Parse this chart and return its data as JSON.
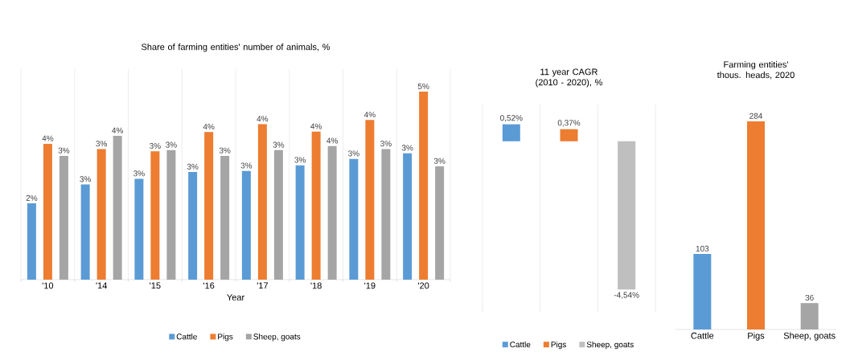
{
  "chart_data": [
    {
      "type": "bar",
      "title": "Share of farming entities' number of animals, %",
      "xlabel": "Year",
      "categories": [
        "'10",
        "'14",
        "'15",
        "'16",
        "'17",
        "'18",
        "'19",
        "'20"
      ],
      "grid": "x",
      "legend": "bottom",
      "series": [
        {
          "name": "Cattle",
          "color": "#5b9bd5",
          "values": [
            2.02,
            2.52,
            2.67,
            2.85,
            2.88,
            3.03,
            3.2,
            3.35
          ],
          "value_labels": [
            "2%",
            "3%",
            "3%",
            "3%",
            "3%",
            "3%",
            "3%",
            "3%"
          ]
        },
        {
          "name": "Pigs",
          "color": "#ed7d31",
          "values": [
            3.6,
            3.46,
            3.4,
            3.91,
            4.12,
            3.92,
            4.23,
            4.98
          ],
          "value_labels": [
            "4%",
            "3%",
            "3%",
            "4%",
            "4%",
            "4%",
            "4%",
            "5%"
          ]
        },
        {
          "name": "Sheep, goats",
          "color": "#a5a5a5",
          "values": [
            3.28,
            3.81,
            3.43,
            3.28,
            3.43,
            3.54,
            3.46,
            3.0
          ],
          "value_labels": [
            "3%",
            "4%",
            "3%",
            "3%",
            "3%",
            "4%",
            "3%",
            "3%"
          ]
        }
      ]
    },
    {
      "type": "bar",
      "title": "11 year CAGR (2010 - 2020), %",
      "categories": [
        "Cattle",
        "Pigs",
        "Sheep, goats"
      ],
      "tick_labels": false,
      "grid": "x",
      "values": [
        0.52,
        0.37,
        -4.54
      ],
      "colors": [
        "#5b9bd5",
        "#ed7d31",
        "#bfbfbf"
      ],
      "value_labels": [
        "0,52%",
        "0,37%",
        "-4,54%"
      ]
    },
    {
      "type": "bar",
      "title": "Farming entities' thous. heads, 2020",
      "categories": [
        "Cattle",
        "Pigs",
        "Sheep, goats"
      ],
      "values": [
        103,
        284,
        36
      ],
      "colors": [
        "#5b9bd5",
        "#ed7d31",
        "#a5a5a5"
      ],
      "data_labels": true
    }
  ]
}
